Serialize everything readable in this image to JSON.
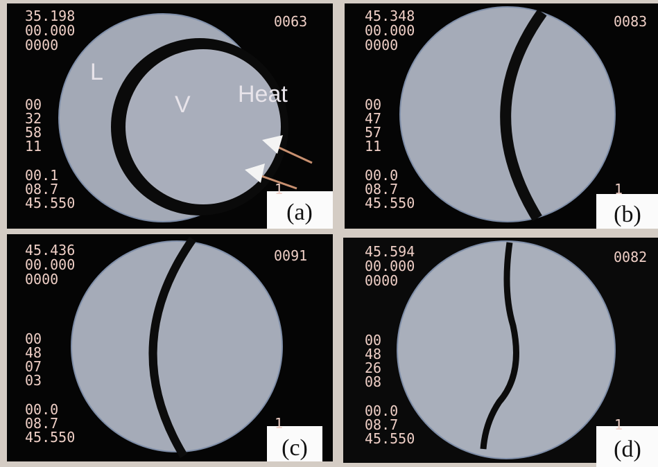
{
  "panels": [
    {
      "label": "(a)",
      "counter": "0063",
      "top": [
        "35.198",
        "00.000",
        "0000"
      ],
      "middle": [
        "00",
        "32",
        "58",
        "11"
      ],
      "bottom": [
        "00.1",
        "08.7",
        "45.550"
      ],
      "marker": "1",
      "annotations": [
        "L",
        "V",
        "Heat"
      ]
    },
    {
      "label": "(b)",
      "counter": "0083",
      "top": [
        "45.348",
        "00.000",
        "0000"
      ],
      "middle": [
        "00",
        "47",
        "57",
        "11"
      ],
      "bottom": [
        "00.0",
        "08.7",
        "45.550"
      ],
      "marker": "1"
    },
    {
      "label": "(c)",
      "counter": "0091",
      "top": [
        "45.436",
        "00.000",
        "0000"
      ],
      "middle": [
        "00",
        "48",
        "07",
        "03"
      ],
      "bottom": [
        "00.0",
        "08.7",
        "45.550"
      ],
      "marker": "1"
    },
    {
      "label": "(d)",
      "counter": "0082",
      "top": [
        "45.594",
        "00.000",
        "0000"
      ],
      "middle": [
        "00",
        "48",
        "26",
        "08"
      ],
      "bottom": [
        "00.0",
        "08.7",
        "45.550"
      ],
      "marker": "1"
    }
  ]
}
